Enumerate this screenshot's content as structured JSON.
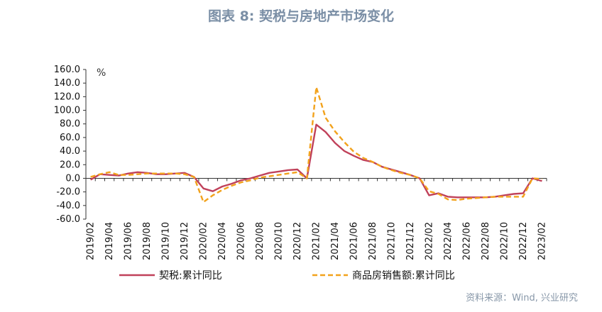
{
  "figure": {
    "title": "图表 8:  契税与房地产市场变化",
    "source": "资料来源：Wind, 兴业研究"
  },
  "colors": {
    "deed_tax": "#c0415a",
    "sales": "#f2a21c",
    "title": "#7b8fa6",
    "axis": "#333333"
  },
  "chart_data": {
    "type": "line",
    "unit_label": "%",
    "ylim": [
      -60,
      160
    ],
    "yticks": [
      "160.0",
      "140.0",
      "120.0",
      "100.0",
      "80.0",
      "60.0",
      "40.0",
      "20.0",
      "0.0",
      "-20.0",
      "-40.0",
      "-60.0"
    ],
    "grid": false,
    "legend_position": "bottom",
    "x": [
      "2019/02",
      "2019/03",
      "2019/04",
      "2019/05",
      "2019/06",
      "2019/07",
      "2019/08",
      "2019/09",
      "2019/10",
      "2019/11",
      "2019/12",
      "2020/01",
      "2020/02",
      "2020/03",
      "2020/04",
      "2020/05",
      "2020/06",
      "2020/07",
      "2020/08",
      "2020/09",
      "2020/10",
      "2020/11",
      "2020/12",
      "2021/01",
      "2021/02",
      "2021/03",
      "2021/04",
      "2021/05",
      "2021/06",
      "2021/07",
      "2021/08",
      "2021/09",
      "2021/10",
      "2021/11",
      "2021/12",
      "2022/01",
      "2022/02",
      "2022/03",
      "2022/04",
      "2022/05",
      "2022/06",
      "2022/07",
      "2022/08",
      "2022/09",
      "2022/10",
      "2022/11",
      "2022/12",
      "2023/01",
      "2023/02"
    ],
    "xtick_labels": [
      "2019/02",
      "2019/04",
      "2019/06",
      "2019/08",
      "2019/10",
      "2019/12",
      "2020/02",
      "2020/04",
      "2020/06",
      "2020/08",
      "2020/10",
      "2020/12",
      "2021/02",
      "2021/04",
      "2021/06",
      "2021/08",
      "2021/10",
      "2021/12",
      "2022/02",
      "2022/04",
      "2022/06",
      "2022/08",
      "2022/10",
      "2022/12",
      "2023/02"
    ],
    "series": [
      {
        "name": "契税:累计同比",
        "style": "solid",
        "values": [
          -2,
          6,
          5,
          4,
          7,
          9,
          8,
          6,
          6,
          7,
          8,
          2,
          -15,
          -19,
          -12,
          -8,
          -3,
          0,
          4,
          8,
          10,
          12,
          13,
          0,
          79,
          68,
          52,
          40,
          33,
          27,
          24,
          17,
          13,
          9,
          5,
          0,
          -25,
          -22,
          -27,
          -28,
          -28,
          -28,
          -28,
          -27,
          -25,
          -23,
          -22,
          0,
          -4
        ]
      },
      {
        "name": "商品房销售额:累计同比",
        "style": "dashed",
        "values": [
          2,
          6,
          9,
          5,
          5,
          6,
          7,
          7,
          7,
          7,
          6,
          2,
          -35,
          -25,
          -17,
          -11,
          -6,
          -3,
          1,
          3,
          5,
          7,
          9,
          0,
          134,
          89,
          69,
          53,
          39,
          30,
          24,
          17,
          12,
          8,
          5,
          0,
          -19,
          -23,
          -31,
          -32,
          -30,
          -29,
          -28,
          -27,
          -27,
          -27,
          -27,
          0,
          -1
        ]
      }
    ]
  }
}
